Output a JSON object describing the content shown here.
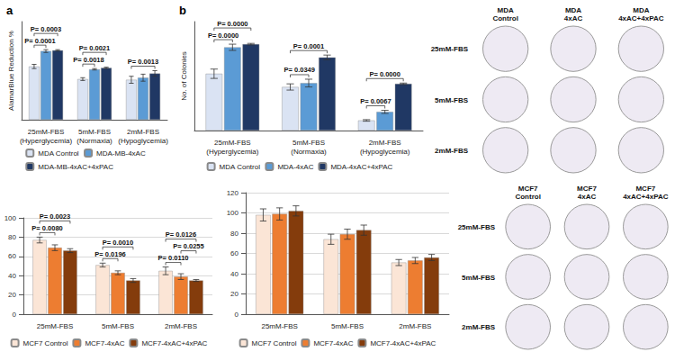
{
  "chart_data": [
    {
      "type": "bar",
      "title": "a",
      "y_label": "AlamarBlue Reduction %",
      "categories": [
        "25mM-FBS\n(Hyperglycemia)",
        "5mM-FBS\n(Normaxia)",
        "2mM-FBS\n(Hypoglycemia)"
      ],
      "series": [
        {
          "name": "MDA Control",
          "color": "#dae3f3",
          "values": [
            76,
            58,
            57
          ],
          "errors": [
            3,
            2,
            5
          ]
        },
        {
          "name": "MDA-MB-4xAC",
          "color": "#5b9bd5",
          "values": [
            98,
            72,
            60
          ],
          "errors": [
            2,
            1,
            5
          ]
        },
        {
          "name": "MDA-MB-4xAC+4xPAC",
          "color": "#203864",
          "values": [
            99,
            74,
            66
          ],
          "errors": [
            1,
            1,
            4
          ]
        }
      ],
      "annotations": [
        {
          "text": "P= 0.0001",
          "category": "25mM-FBS\n(Hyperglycemia)",
          "series": [
            "MDA Control",
            "MDA-MB-4xAC"
          ]
        },
        {
          "text": "P= 0.0003",
          "category": "25mM-FBS\n(Hyperglycemia)",
          "series": [
            "MDA Control",
            "MDA-MB-4xAC+4xPAC"
          ]
        },
        {
          "text": "P= 0.0018",
          "category": "5mM-FBS\n(Normaxia)",
          "series": [
            "MDA Control",
            "MDA-MB-4xAC"
          ]
        },
        {
          "text": "P= 0.0021",
          "category": "5mM-FBS\n(Normaxia)",
          "series": [
            "MDA Control",
            "MDA-MB-4xAC+4xPAC"
          ]
        },
        {
          "text": "P= 0.0013",
          "category": "2mM-FBS\n(Hypoglycemia)",
          "series": [
            "MDA Control",
            "MDA-MB-4xAC+4xPAC"
          ]
        }
      ],
      "ylim": [
        0,
        140
      ],
      "yticks": [
        0,
        20,
        40,
        60,
        80,
        100,
        120,
        140
      ],
      "grid": false,
      "tick_labels": "x",
      "legend": "bottom"
    },
    {
      "type": "bar",
      "title": "b",
      "y_label": "No. of Colonies",
      "categories": [
        "25mM-FBS\n(Hyperglycemia)",
        "5mM-FBS\n(Normaxia)",
        "2mM-FBS\n(Hypoglycemia)"
      ],
      "series": [
        {
          "name": "MDA Control",
          "color": "#dae3f3",
          "values": [
            73,
            56,
            13
          ],
          "errors": [
            6,
            4,
            1
          ]
        },
        {
          "name": "MDA-4xAC",
          "color": "#5b9bd5",
          "values": [
            107,
            61,
            24
          ],
          "errors": [
            4,
            5,
            2
          ]
        },
        {
          "name": "MDA-4xAC+4xPAC",
          "color": "#203864",
          "values": [
            111,
            94,
            60
          ],
          "errors": [
            1,
            3,
            1
          ]
        }
      ],
      "annotations": [
        {
          "text": "P= 0.0000",
          "category": "25mM-FBS\n(Hyperglycemia)",
          "series": [
            "MDA Control",
            "MDA-4xAC"
          ]
        },
        {
          "text": "P= 0.0000",
          "category": "25mM-FBS\n(Hyperglycemia)",
          "series": [
            "MDA Control",
            "MDA-4xAC+4xPAC"
          ]
        },
        {
          "text": "P= 0.0349",
          "category": "5mM-FBS\n(Normaxia)",
          "series": [
            "MDA Control",
            "MDA-4xAC"
          ]
        },
        {
          "text": "P= 0.0001",
          "category": "5mM-FBS\n(Normaxia)",
          "series": [
            "MDA Control",
            "MDA-4xAC+4xPAC"
          ]
        },
        {
          "text": "P= 0.0067",
          "category": "2mM-FBS\n(Hypoglycemia)",
          "series": [
            "MDA Control",
            "MDA-4xAC"
          ]
        },
        {
          "text": "P= 0.0000",
          "category": "2mM-FBS\n(Hypoglycemia)",
          "series": [
            "MDA Control",
            "MDA-4xAC+4xPAC"
          ]
        }
      ],
      "ylim": [
        0,
        140
      ],
      "yticks": [
        0,
        20,
        40,
        60,
        80,
        100,
        120,
        140
      ],
      "grid": false,
      "tick_labels": "x",
      "legend": "bottom"
    },
    {
      "type": "bar",
      "categories": [
        "25mM-FBS",
        "5mM-FBS",
        "2mM-FBS"
      ],
      "series": [
        {
          "name": "MCF7 Control",
          "color": "#fbe5d6",
          "values": [
            77,
            51,
            45
          ],
          "errors": [
            3,
            2,
            4
          ]
        },
        {
          "name": "MCF7-4xAC",
          "color": "#ed7d31",
          "values": [
            69,
            43,
            39
          ],
          "errors": [
            3,
            2,
            3
          ]
        },
        {
          "name": "MCF7-4xAC+4xPAC",
          "color": "#843c0c",
          "values": [
            66,
            35,
            35
          ],
          "errors": [
            2,
            2,
            1
          ]
        }
      ],
      "annotations": [
        {
          "text": "P= 0.0080",
          "category": "25mM-FBS",
          "series": [
            "MCF7 Control",
            "MCF7-4xAC"
          ]
        },
        {
          "text": "P= 0.0023",
          "category": "25mM-FBS",
          "series": [
            "MCF7 Control",
            "MCF7-4xAC+4xPAC"
          ]
        },
        {
          "text": "P= 0.0196",
          "category": "5mM-FBS",
          "series": [
            "MCF7 Control",
            "MCF7-4xAC"
          ]
        },
        {
          "text": "P= 0.0010",
          "category": "5mM-FBS",
          "series": [
            "MCF7 Control",
            "MCF7-4xAC+4xPAC"
          ]
        },
        {
          "text": "P= 0.0110",
          "category": "2mM-FBS",
          "series": [
            "MCF7 Control",
            "MCF7-4xAC"
          ]
        },
        {
          "text": "P= 0.0255",
          "category": "2mM-FBS",
          "series": [
            "MCF7-4xAC",
            "MCF7-4xAC+4xPAC"
          ]
        },
        {
          "text": "P= 0.0126",
          "category": "2mM-FBS",
          "series": [
            "MCF7 Control",
            "MCF7-4xAC+4xPAC"
          ]
        }
      ],
      "ylim": [
        0,
        100
      ],
      "yticks": [
        0,
        20,
        40,
        60,
        80,
        100
      ],
      "grid": true,
      "legend": "bottom"
    },
    {
      "type": "bar",
      "categories": [
        "25mM-FBS",
        "5mM-FBS",
        "2mM-FBS"
      ],
      "series": [
        {
          "name": "MCF7 Control",
          "color": "#fbe5d6",
          "values": [
            98,
            74,
            51
          ],
          "errors": [
            6,
            5,
            3
          ]
        },
        {
          "name": "MCF7-4xAC",
          "color": "#ed7d31",
          "values": [
            99,
            79,
            53
          ],
          "errors": [
            6,
            5,
            3
          ]
        },
        {
          "name": "MCF7-4xAC+4xPAC",
          "color": "#843c0c",
          "values": [
            102,
            83,
            56
          ],
          "errors": [
            5,
            5,
            3
          ]
        }
      ],
      "annotations": [],
      "ylim": [
        0,
        120
      ],
      "yticks": [
        0,
        20,
        40,
        60,
        80,
        100,
        120
      ],
      "grid": true,
      "legend": "bottom"
    }
  ],
  "plates": [
    {
      "columns": [
        "MDA\nControl",
        "MDA\n4xAC",
        "MDA\n4xAC+4xPAC"
      ],
      "rows": [
        "25mM-FBS",
        "5mM-FBS",
        "2mM-FBS"
      ]
    },
    {
      "columns": [
        "MCF7\nControl",
        "MCF7\n4xAC",
        "MCF7\n4xAC+4xPAC"
      ],
      "rows": [
        "25mM-FBS",
        "5mM-FBS",
        "2mM-FBS"
      ]
    }
  ]
}
